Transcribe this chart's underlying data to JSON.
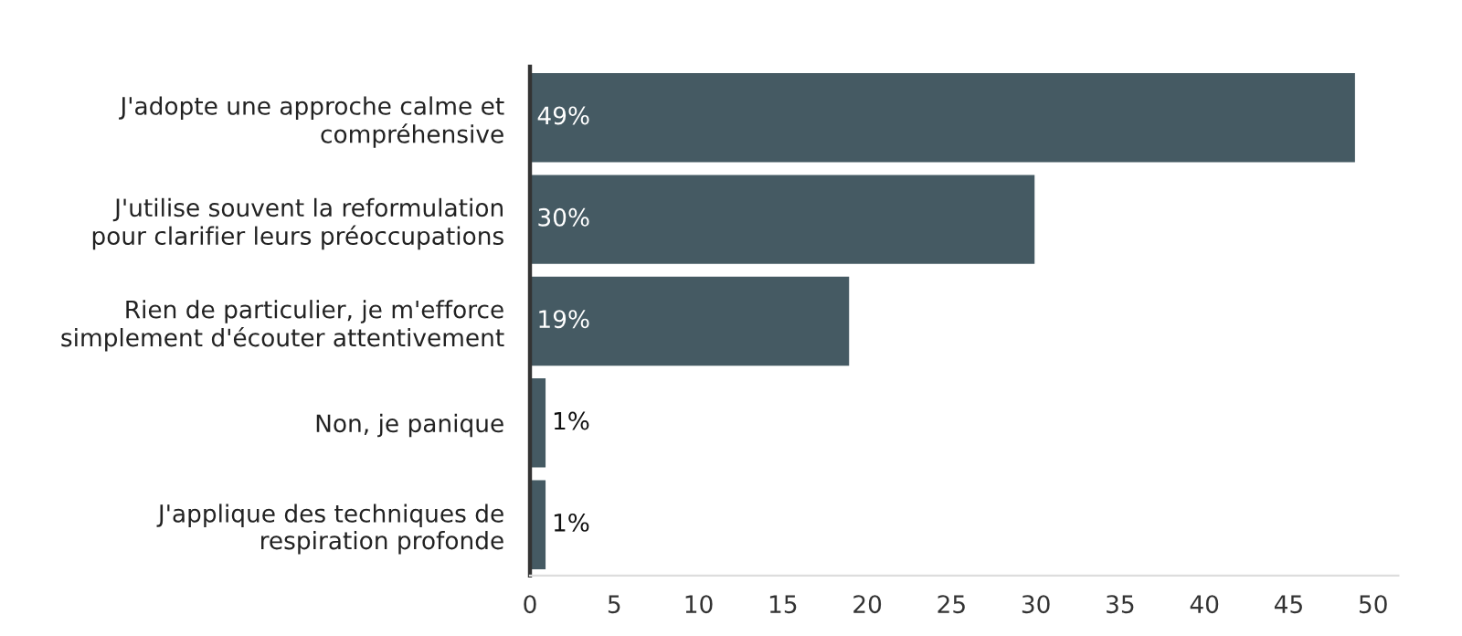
{
  "chart_data": {
    "type": "bar",
    "orientation": "horizontal",
    "categories": [
      "J'adopte une approche calme et\ncompréhensive",
      "J'utilise souvent la reformulation\npour clarifier leurs préoccupations",
      "Rien de particulier, je m'efforce\nsimplement d'écouter attentivement",
      "Non, je panique",
      "J'applique des techniques de\nrespiration profonde"
    ],
    "values": [
      49,
      30,
      19,
      1,
      1
    ],
    "value_labels": [
      "49%",
      "30%",
      "19%",
      "1%",
      "1%"
    ],
    "color": "#455a63",
    "xlim": [
      0,
      51.5
    ],
    "xticks": [
      0,
      5,
      10,
      15,
      20,
      25,
      30,
      35,
      40,
      45,
      50
    ],
    "grid": false,
    "legend": false
  }
}
